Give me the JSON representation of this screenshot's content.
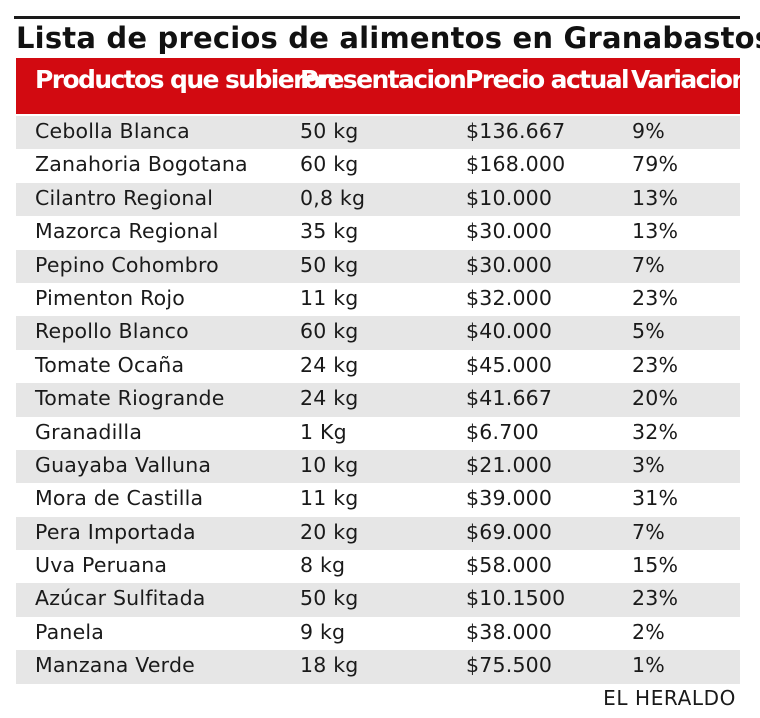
{
  "title": "Lista de precios de alimentos en Granabastos",
  "colors": {
    "header_bg": "#d20a11",
    "row_alt": "#e6e6e6"
  },
  "table": {
    "headers": [
      "Productos que subieron",
      "Presentacion",
      "Precio actual",
      "Variacion"
    ],
    "rows": [
      [
        "Cebolla Blanca",
        "50 kg",
        "$136.667",
        "9%"
      ],
      [
        "Zanahoria Bogotana",
        "60 kg",
        "$168.000",
        "79%"
      ],
      [
        "Cilantro Regional",
        "0,8 kg",
        "$10.000",
        "13%"
      ],
      [
        "Mazorca Regional",
        "35 kg",
        "$30.000",
        "13%"
      ],
      [
        "Pepino Cohombro",
        "50 kg",
        "$30.000",
        "7%"
      ],
      [
        "Pimenton Rojo",
        "11 kg",
        "$32.000",
        "23%"
      ],
      [
        "Repollo Blanco",
        "60 kg",
        "$40.000",
        "5%"
      ],
      [
        "Tomate Ocaña",
        "24 kg",
        "$45.000",
        "23%"
      ],
      [
        "Tomate Riogrande",
        "24 kg",
        "$41.667",
        "20%"
      ],
      [
        "Granadilla",
        "1 Kg",
        "$6.700",
        "32%"
      ],
      [
        "Guayaba Valluna",
        "10 kg",
        "$21.000",
        "3%"
      ],
      [
        "Mora de Castilla",
        "11 kg",
        "$39.000",
        "31%"
      ],
      [
        "Pera Importada",
        "20 kg",
        "$69.000",
        "7%"
      ],
      [
        "Uva Peruana",
        "8 kg",
        "$58.000",
        "15%"
      ],
      [
        "Azúcar Sulfitada",
        "50 kg",
        "$10.1500",
        "23%"
      ],
      [
        "Panela",
        "9 kg",
        "$38.000",
        "2%"
      ],
      [
        "Manzana Verde",
        "18 kg",
        "$75.500",
        "1%"
      ]
    ]
  },
  "footer": {
    "credit": "EL HERALDO"
  }
}
